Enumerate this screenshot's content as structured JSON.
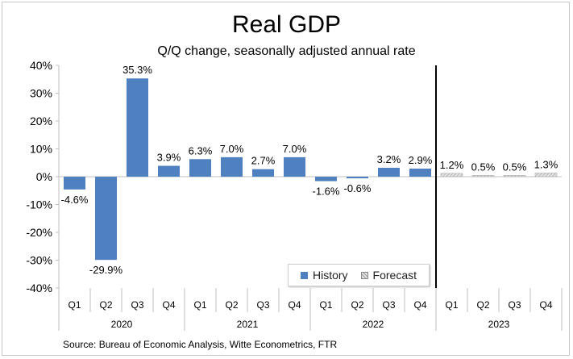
{
  "title": "Real GDP",
  "subtitle": "Q/Q change, seasonally adjusted annual rate",
  "source": "Source: Bureau of Economic Analysis, Witte Econometrics, FTR",
  "legend": {
    "history": "History",
    "forecast": "Forecast",
    "placement": "bottom-center"
  },
  "colors": {
    "history": "#4f81c1",
    "forecast": "#d9d9d9",
    "forecast_hatch": "#9a9a9a",
    "divider": "#000000",
    "axis": "#bfbfbf"
  },
  "chart_data": {
    "type": "bar",
    "ylim": [
      -40,
      40
    ],
    "yticks": [
      -40,
      -30,
      -20,
      -10,
      0,
      10,
      20,
      30,
      40
    ],
    "yticklabels": [
      "-40%",
      "-30%",
      "-20%",
      "-10%",
      "0%",
      "10%",
      "20%",
      "30%",
      "40%"
    ],
    "grid": false,
    "years": [
      "2020",
      "2021",
      "2022",
      "2023"
    ],
    "categories": [
      "Q1",
      "Q2",
      "Q3",
      "Q4",
      "Q1",
      "Q2",
      "Q3",
      "Q4",
      "Q1",
      "Q2",
      "Q3",
      "Q4",
      "Q1",
      "Q2",
      "Q3",
      "Q4"
    ],
    "values": [
      -4.6,
      -29.9,
      35.3,
      3.9,
      6.3,
      7.0,
      2.7,
      7.0,
      -1.6,
      -0.6,
      3.2,
      2.9,
      1.2,
      0.5,
      0.5,
      1.3
    ],
    "labels": [
      "-4.6%",
      "-29.9%",
      "35.3%",
      "3.9%",
      "6.3%",
      "7.0%",
      "2.7%",
      "7.0%",
      "-1.6%",
      "-0.6%",
      "3.2%",
      "2.9%",
      "1.2%",
      "0.5%",
      "0.5%",
      "1.3%"
    ],
    "kind": [
      "history",
      "history",
      "history",
      "history",
      "history",
      "history",
      "history",
      "history",
      "history",
      "history",
      "history",
      "history",
      "forecast",
      "forecast",
      "forecast",
      "forecast"
    ]
  }
}
